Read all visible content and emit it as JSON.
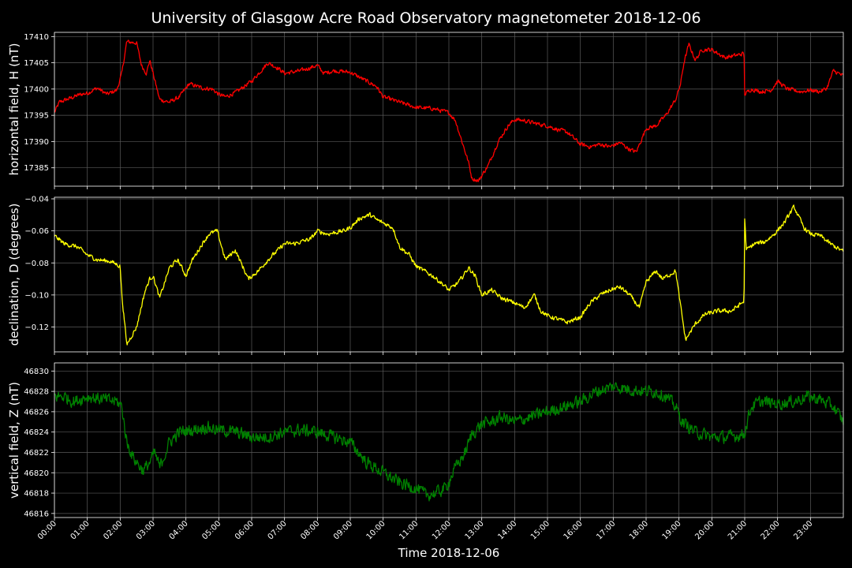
{
  "chart_data": {
    "title": "University of Glasgow Acre Road Observatory magnetometer 2018-12-06",
    "xlabel": "Time 2018-12-06",
    "x_ticks": [
      "00:00",
      "01:00",
      "02:00",
      "03:00",
      "04:00",
      "05:00",
      "06:00",
      "07:00",
      "08:00",
      "09:00",
      "10:00",
      "11:00",
      "12:00",
      "13:00",
      "14:00",
      "15:00",
      "16:00",
      "17:00",
      "18:00",
      "19:00",
      "20:00",
      "21:00",
      "22:00",
      "23:00"
    ],
    "x_range_hours": [
      0,
      24
    ],
    "grid": true,
    "panels": [
      {
        "type": "line",
        "ylabel": "horizontal field, H (nT)",
        "color": "#ff0000",
        "ylim": [
          17381.5,
          17410.8
        ],
        "yticks": [
          17385,
          17390,
          17395,
          17400,
          17405,
          17410
        ],
        "ytick_labels": [
          "17385",
          "17390",
          "17395",
          "17400",
          "17405",
          "17410"
        ],
        "noise": 0.35,
        "series": {
          "x": [
            0,
            0.15,
            0.5,
            0.8,
            1.0,
            1.3,
            1.6,
            1.9,
            2.05,
            2.2,
            2.5,
            2.65,
            2.8,
            2.9,
            3.2,
            3.5,
            3.8,
            4.1,
            4.5,
            4.8,
            5.0,
            5.2,
            5.5,
            6.0,
            6.5,
            6.8,
            7.0,
            7.5,
            8.0,
            8.2,
            8.5,
            9.0,
            9.5,
            9.8,
            10.0,
            10.5,
            11.0,
            11.5,
            12.0,
            12.2,
            12.4,
            12.6,
            12.7,
            12.9,
            13.2,
            13.5,
            13.8,
            14.0,
            14.3,
            14.6,
            15.0,
            15.3,
            15.6,
            16.0,
            16.3,
            16.6,
            16.9,
            17.2,
            17.5,
            17.7,
            18.0,
            18.3,
            18.6,
            18.9,
            19.05,
            19.15,
            19.3,
            19.5,
            19.7,
            20.0,
            20.4,
            20.8,
            20.98,
            21.0,
            21.2,
            21.5,
            21.8,
            22.0,
            22.3,
            22.7,
            23.0,
            23.3,
            23.5,
            23.7,
            24.0
          ],
          "y": [
            17395.5,
            17397.5,
            17398.3,
            17399.0,
            17399.2,
            17400.2,
            17399.0,
            17399.8,
            17403.0,
            17409.0,
            17408.8,
            17404.5,
            17403.0,
            17405.5,
            17398.0,
            17397.5,
            17398.5,
            17401.0,
            17400.2,
            17400.0,
            17399.0,
            17398.5,
            17399.3,
            17401.5,
            17405.0,
            17404.0,
            17403.0,
            17403.5,
            17404.5,
            17403.0,
            17403.5,
            17403.2,
            17401.5,
            17400.5,
            17398.5,
            17397.5,
            17396.5,
            17396.3,
            17395.5,
            17394.0,
            17390.0,
            17386.0,
            17383.0,
            17382.5,
            17385.5,
            17390.0,
            17393.0,
            17394.2,
            17394.0,
            17393.5,
            17393.0,
            17392.3,
            17391.8,
            17389.5,
            17389.0,
            17389.5,
            17389.0,
            17389.8,
            17388.5,
            17388.0,
            17392.5,
            17393.0,
            17395.0,
            17398.0,
            17401.0,
            17405.0,
            17408.5,
            17405.5,
            17407.5,
            17407.5,
            17406.0,
            17406.5,
            17406.8,
            17399.0,
            17400.0,
            17399.5,
            17399.8,
            17401.5,
            17400.0,
            17399.5,
            17399.8,
            17399.5,
            17400.2,
            17403.5,
            17402.5
          ]
        }
      },
      {
        "type": "line",
        "ylabel": "declination, D (degrees)",
        "color": "#ffff00",
        "ylim": [
          -0.1355,
          -0.039
        ],
        "yticks": [
          -0.12,
          -0.1,
          -0.08,
          -0.06,
          -0.04
        ],
        "ytick_labels": [
          "−0.12",
          "−0.10",
          "−0.08",
          "−0.06",
          "−0.04"
        ],
        "noise": 0.0012,
        "series": {
          "x": [
            0,
            0.3,
            0.7,
            1.0,
            1.3,
            1.7,
            2.0,
            2.05,
            2.2,
            2.5,
            2.75,
            2.9,
            3.0,
            3.2,
            3.5,
            3.75,
            4.0,
            4.2,
            4.5,
            4.7,
            4.95,
            5.2,
            5.5,
            5.9,
            6.2,
            6.5,
            6.8,
            7.0,
            7.3,
            7.8,
            8.0,
            8.3,
            8.8,
            9.0,
            9.3,
            9.6,
            9.8,
            10.0,
            10.3,
            10.5,
            10.8,
            11.0,
            11.5,
            11.8,
            12.0,
            12.3,
            12.6,
            12.8,
            13.0,
            13.3,
            13.6,
            14.0,
            14.3,
            14.6,
            14.8,
            15.0,
            15.3,
            15.6,
            16.0,
            16.3,
            16.6,
            16.9,
            17.2,
            17.5,
            17.8,
            18.0,
            18.3,
            18.5,
            18.9,
            19.0,
            19.2,
            19.5,
            19.8,
            20.2,
            20.6,
            20.98,
            21.0,
            21.05,
            21.3,
            21.6,
            21.9,
            22.2,
            22.5,
            22.8,
            23.0,
            23.3,
            23.6,
            24.0
          ],
          "y": [
            -0.063,
            -0.068,
            -0.07,
            -0.075,
            -0.078,
            -0.079,
            -0.082,
            -0.1,
            -0.131,
            -0.12,
            -0.098,
            -0.09,
            -0.088,
            -0.102,
            -0.083,
            -0.078,
            -0.088,
            -0.078,
            -0.068,
            -0.062,
            -0.06,
            -0.078,
            -0.072,
            -0.09,
            -0.085,
            -0.078,
            -0.072,
            -0.068,
            -0.068,
            -0.065,
            -0.06,
            -0.062,
            -0.06,
            -0.058,
            -0.052,
            -0.05,
            -0.053,
            -0.055,
            -0.058,
            -0.07,
            -0.075,
            -0.082,
            -0.088,
            -0.093,
            -0.097,
            -0.092,
            -0.083,
            -0.088,
            -0.1,
            -0.097,
            -0.102,
            -0.105,
            -0.108,
            -0.1,
            -0.11,
            -0.113,
            -0.115,
            -0.117,
            -0.114,
            -0.105,
            -0.1,
            -0.097,
            -0.095,
            -0.1,
            -0.108,
            -0.092,
            -0.085,
            -0.09,
            -0.085,
            -0.1,
            -0.128,
            -0.118,
            -0.112,
            -0.11,
            -0.11,
            -0.104,
            -0.052,
            -0.072,
            -0.068,
            -0.067,
            -0.062,
            -0.055,
            -0.045,
            -0.058,
            -0.062,
            -0.063,
            -0.068,
            -0.073
          ]
        }
      },
      {
        "type": "line",
        "ylabel": "vertical field, Z (nT)",
        "color": "#008000",
        "ylim": [
          46815.6,
          46830.8
        ],
        "yticks": [
          46816,
          46818,
          46820,
          46822,
          46824,
          46826,
          46828,
          46830
        ],
        "ytick_labels": [
          "46816",
          "46818",
          "46820",
          "46822",
          "46824",
          "46826",
          "46828",
          "46830"
        ],
        "noise": 0.55,
        "series": {
          "x": [
            0,
            0.3,
            0.6,
            1.0,
            1.5,
            1.9,
            2.05,
            2.2,
            2.4,
            2.7,
            2.9,
            3.05,
            3.2,
            3.5,
            3.8,
            4.2,
            4.6,
            5.0,
            5.5,
            6.0,
            6.5,
            7.0,
            7.5,
            8.0,
            8.5,
            9.0,
            9.5,
            10.0,
            10.5,
            11.0,
            11.3,
            11.6,
            11.9,
            12.2,
            12.5,
            12.7,
            13.0,
            13.3,
            13.6,
            14.0,
            14.5,
            15.0,
            15.5,
            16.0,
            16.5,
            17.0,
            17.5,
            18.0,
            18.3,
            18.6,
            18.9,
            19.1,
            19.5,
            20.0,
            20.5,
            20.98,
            21.2,
            21.5,
            22.0,
            22.5,
            22.9,
            23.3,
            23.7,
            24.0
          ],
          "y": [
            46827.5,
            46827.5,
            46827.0,
            46827.5,
            46827.2,
            46827.0,
            46826.5,
            46823.0,
            46821.5,
            46820.2,
            46821.0,
            46822.0,
            46820.5,
            46823.0,
            46824.0,
            46824.2,
            46824.5,
            46824.2,
            46824.0,
            46823.5,
            46823.5,
            46824.0,
            46824.2,
            46824.0,
            46823.5,
            46823.0,
            46821.0,
            46820.0,
            46819.0,
            46818.5,
            46817.8,
            46818.0,
            46818.5,
            46820.5,
            46822.0,
            46823.8,
            46824.8,
            46825.0,
            46825.5,
            46825.0,
            46825.5,
            46826.0,
            46826.5,
            46827.0,
            46828.0,
            46828.5,
            46828.2,
            46828.0,
            46828.0,
            46827.5,
            46826.5,
            46825.0,
            46824.0,
            46823.5,
            46823.5,
            46823.8,
            46826.5,
            46827.0,
            46826.8,
            46827.0,
            46827.5,
            46827.2,
            46826.5,
            46825.0
          ]
        }
      }
    ]
  }
}
